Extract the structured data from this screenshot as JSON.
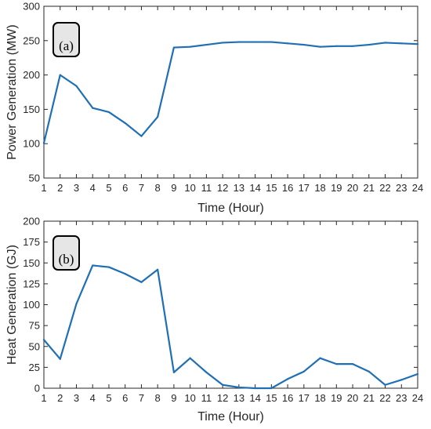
{
  "colors": {
    "line": "#1f6fb5",
    "axis": "#262626",
    "label_box_fill": "#e6e6e6",
    "label_box_stroke": "#000000"
  },
  "chart_data": [
    {
      "type": "line",
      "panel_label": "(a)",
      "xlabel": "Time (Hour)",
      "ylabel": "Power Generation (MW)",
      "xlim": [
        1,
        24
      ],
      "ylim": [
        50,
        300
      ],
      "xticks": [
        1,
        2,
        3,
        4,
        5,
        6,
        7,
        8,
        9,
        10,
        11,
        12,
        13,
        14,
        15,
        16,
        17,
        18,
        19,
        20,
        21,
        22,
        23,
        24
      ],
      "yticks": [
        50,
        100,
        150,
        200,
        250,
        300
      ],
      "grid": false,
      "x": [
        1,
        2,
        3,
        4,
        5,
        6,
        7,
        8,
        9,
        10,
        11,
        12,
        13,
        14,
        15,
        16,
        17,
        18,
        19,
        20,
        21,
        22,
        23,
        24
      ],
      "values": [
        101,
        200,
        184,
        152,
        146,
        130,
        111,
        139,
        240,
        241,
        244,
        247,
        248,
        248,
        248,
        246,
        244,
        241,
        242,
        242,
        244,
        247,
        246,
        245
      ]
    },
    {
      "type": "line",
      "panel_label": "(b)",
      "xlabel": "Time (Hour)",
      "ylabel": "Heat Generation (GJ)",
      "xlim": [
        1,
        24
      ],
      "ylim": [
        0,
        200
      ],
      "xticks": [
        1,
        2,
        3,
        4,
        5,
        6,
        7,
        8,
        9,
        10,
        11,
        12,
        13,
        14,
        15,
        16,
        17,
        18,
        19,
        20,
        21,
        22,
        23,
        24
      ],
      "yticks": [
        0,
        25,
        50,
        75,
        100,
        125,
        150,
        175,
        200
      ],
      "grid": false,
      "x": [
        1,
        2,
        3,
        4,
        5,
        6,
        7,
        8,
        9,
        10,
        11,
        12,
        13,
        14,
        15,
        16,
        17,
        18,
        19,
        20,
        21,
        22,
        23,
        24
      ],
      "values": [
        58,
        35,
        101,
        147,
        145,
        137,
        127,
        142,
        19,
        36,
        19,
        4,
        1,
        0,
        0,
        11,
        20,
        36,
        29,
        29,
        20,
        4,
        10,
        17
      ]
    }
  ]
}
